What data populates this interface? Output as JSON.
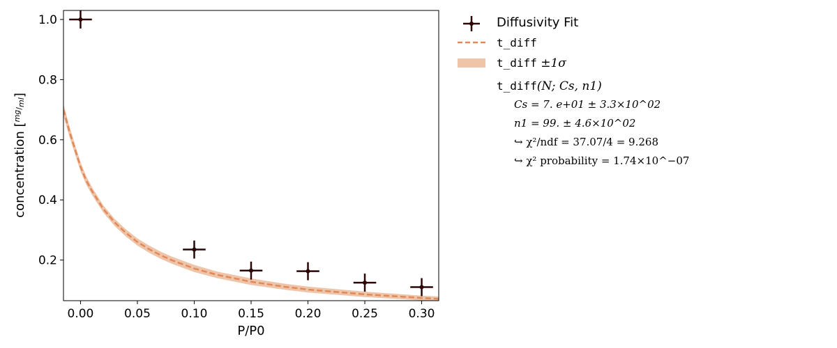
{
  "chart_data": {
    "type": "scatter",
    "title": "",
    "xlabel": "P/P0",
    "ylabel": "concentration [mg/ml]",
    "ylabel_prefix": "concentration [",
    "ylabel_frac_num": "mg",
    "ylabel_frac_den": "ml",
    "ylabel_suffix": "]",
    "xlim": [
      -0.015,
      0.315
    ],
    "ylim": [
      0.065,
      1.03
    ],
    "xticks": [
      0.0,
      0.05,
      0.1,
      0.15,
      0.2,
      0.25,
      0.3
    ],
    "xtick_labels": [
      "0.00",
      "0.05",
      "0.10",
      "0.15",
      "0.20",
      "0.25",
      "0.30"
    ],
    "yticks": [
      0.2,
      0.4,
      0.6,
      0.8,
      1.0
    ],
    "ytick_labels": [
      "0.2",
      "0.4",
      "0.6",
      "0.8",
      "1.0"
    ],
    "grid": false,
    "legend_position": "outside-right",
    "series": [
      {
        "name": "Diffusivity Fit",
        "kind": "errorbar",
        "color": "#2a0606",
        "x": [
          0.0,
          0.1,
          0.15,
          0.2,
          0.25,
          0.3
        ],
        "y": [
          1.0,
          0.235,
          0.165,
          0.163,
          0.125,
          0.11
        ],
        "xerr": [
          0.01,
          0.01,
          0.01,
          0.01,
          0.01,
          0.01
        ],
        "yerr": [
          0.03,
          0.03,
          0.03,
          0.03,
          0.03,
          0.03
        ]
      },
      {
        "name": "t_diff",
        "kind": "line",
        "style": "dashed",
        "color": "#e0895a",
        "x": [
          -0.015,
          -0.01,
          -0.005,
          0.0,
          0.005,
          0.01,
          0.02,
          0.03,
          0.04,
          0.05,
          0.06,
          0.07,
          0.08,
          0.1,
          0.12,
          0.15,
          0.18,
          0.2,
          0.25,
          0.3,
          0.315
        ],
        "y": [
          0.7,
          0.63,
          0.57,
          0.51,
          0.465,
          0.43,
          0.37,
          0.325,
          0.29,
          0.26,
          0.237,
          0.217,
          0.2,
          0.172,
          0.151,
          0.128,
          0.111,
          0.102,
          0.086,
          0.074,
          0.071
        ]
      },
      {
        "name": "t_diff ±1σ",
        "kind": "band",
        "color": "#eec5a8",
        "band_halfwidth": [
          0.02,
          0.018,
          0.016,
          0.015,
          0.014,
          0.013,
          0.012,
          0.012,
          0.012,
          0.012,
          0.012,
          0.012,
          0.012,
          0.012,
          0.011,
          0.011,
          0.01,
          0.01,
          0.009,
          0.008,
          0.008
        ]
      }
    ],
    "legend": {
      "fit_label": "Diffusivity Fit",
      "line_label": "t_diff",
      "band_label_mono": "t_diff",
      "band_label_rest": " ±1σ",
      "model_mono": "t_diff",
      "model_args": "(N; Cs, n1)",
      "param1": "Cs = 7. e+01 ± 3.3×10^02",
      "param2": "n1 = 99. ± 4.6×10^02",
      "chi2_ndf": "↪ χ²/ndf = 37.07/4 = 9.268",
      "chi2_prob": "↪ χ² probability = 1.74×10^−07"
    }
  }
}
